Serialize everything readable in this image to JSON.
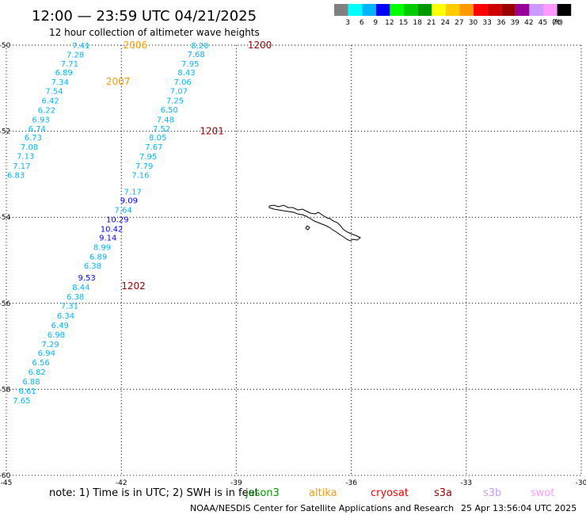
{
  "header": {
    "title": "12:00 — 23:59 UTC 04/21/2025",
    "subtitle": "12 hour collection of altimeter wave heights"
  },
  "colorbar": {
    "unit_label": "(ft)",
    "entries": [
      {
        "label": "",
        "color": "#808080"
      },
      {
        "label": "3",
        "color": "#00ffff"
      },
      {
        "label": "6",
        "color": "#00b4ff"
      },
      {
        "label": "9",
        "color": "#0000ff"
      },
      {
        "label": "12",
        "color": "#00ff00"
      },
      {
        "label": "15",
        "color": "#00cc00"
      },
      {
        "label": "18",
        "color": "#009900"
      },
      {
        "label": "21",
        "color": "#ffff00"
      },
      {
        "label": "24",
        "color": "#ffcc00"
      },
      {
        "label": "27",
        "color": "#ff9900"
      },
      {
        "label": "30",
        "color": "#ff0000"
      },
      {
        "label": "33",
        "color": "#cc0000"
      },
      {
        "label": "36",
        "color": "#990000"
      },
      {
        "label": "39",
        "color": "#990099"
      },
      {
        "label": "42",
        "color": "#cc99ff"
      },
      {
        "label": "45",
        "color": "#ff99ff"
      },
      {
        "label": "70",
        "color": "#000000"
      }
    ]
  },
  "map": {
    "lon_ticks": [
      "-45",
      "-42",
      "-39",
      "-36",
      "-33",
      "-30"
    ],
    "lat_ticks": [
      "-50",
      "-52",
      "-54",
      "-56",
      "-58",
      "-60"
    ],
    "lon_range": [
      -45,
      -30
    ],
    "lat_range": [
      -60,
      -50
    ]
  },
  "time_labels": [
    {
      "text": "2006",
      "lon": -41.95,
      "lat": -50.0,
      "color": "#ff9900"
    },
    {
      "text": "2007",
      "lon": -42.4,
      "lat": -50.85,
      "color": "#ff9900"
    },
    {
      "text": "1200",
      "lon": -38.7,
      "lat": -50.0,
      "color": "#990000"
    },
    {
      "text": "1201",
      "lon": -39.95,
      "lat": -52.0,
      "color": "#990000"
    },
    {
      "text": "1202",
      "lon": -42.0,
      "lat": -55.6,
      "color": "#990000"
    }
  ],
  "tracks": [
    {
      "name": "",
      "points": [
        {
          "v": "7.41",
          "lon": -43.05,
          "lat": -50.0,
          "color": "#00b4ff"
        },
        {
          "v": "7.28",
          "lon": -43.2,
          "lat": -50.21,
          "color": "#00b4ff"
        },
        {
          "v": "7.71",
          "lon": -43.35,
          "lat": -50.42,
          "color": "#00b4ff"
        },
        {
          "v": "6.89",
          "lon": -43.5,
          "lat": -50.63,
          "color": "#00b4ff"
        },
        {
          "v": "7.34",
          "lon": -43.6,
          "lat": -50.85,
          "color": "#00b4ff"
        },
        {
          "v": "7.54",
          "lon": -43.75,
          "lat": -51.06,
          "color": "#00b4ff"
        },
        {
          "v": "6.42",
          "lon": -43.85,
          "lat": -51.28,
          "color": "#00b4ff"
        },
        {
          "v": "6.22",
          "lon": -43.95,
          "lat": -51.5,
          "color": "#00b4ff"
        },
        {
          "v": "6.93",
          "lon": -44.1,
          "lat": -51.72,
          "color": "#00b4ff"
        },
        {
          "v": "6.74",
          "lon": -44.2,
          "lat": -51.93,
          "color": "#00b4ff"
        },
        {
          "v": "6.73",
          "lon": -44.3,
          "lat": -52.14,
          "color": "#00b4ff"
        },
        {
          "v": "7.08",
          "lon": -44.4,
          "lat": -52.36,
          "color": "#00b4ff"
        },
        {
          "v": "7.13",
          "lon": -44.5,
          "lat": -52.57,
          "color": "#00b4ff"
        },
        {
          "v": "7.17",
          "lon": -44.6,
          "lat": -52.8,
          "color": "#00b4ff"
        },
        {
          "v": "6.83",
          "lon": -44.75,
          "lat": -53.01,
          "color": "#00b4ff"
        }
      ]
    },
    {
      "name": "",
      "points": [
        {
          "v": "8.20",
          "lon": -39.95,
          "lat": -50.0,
          "color": "#00b4ff"
        },
        {
          "v": "7.68",
          "lon": -40.05,
          "lat": -50.2,
          "color": "#00b4ff"
        },
        {
          "v": "7.95",
          "lon": -40.2,
          "lat": -50.42,
          "color": "#00b4ff"
        },
        {
          "v": "8.43",
          "lon": -40.3,
          "lat": -50.63,
          "color": "#00b4ff"
        },
        {
          "v": "7.06",
          "lon": -40.4,
          "lat": -50.85,
          "color": "#00b4ff"
        },
        {
          "v": "7.07",
          "lon": -40.5,
          "lat": -51.06,
          "color": "#00b4ff"
        },
        {
          "v": "7.25",
          "lon": -40.6,
          "lat": -51.28,
          "color": "#00b4ff"
        },
        {
          "v": "6.50",
          "lon": -40.75,
          "lat": -51.49,
          "color": "#00b4ff"
        },
        {
          "v": "7.48",
          "lon": -40.85,
          "lat": -51.72,
          "color": "#00b4ff"
        },
        {
          "v": "7.52",
          "lon": -40.95,
          "lat": -51.93,
          "color": "#00b4ff"
        },
        {
          "v": "8.05",
          "lon": -41.05,
          "lat": -52.14,
          "color": "#00b4ff"
        },
        {
          "v": "7.67",
          "lon": -41.15,
          "lat": -52.36,
          "color": "#00b4ff"
        },
        {
          "v": "7.95",
          "lon": -41.3,
          "lat": -52.58,
          "color": "#00b4ff"
        },
        {
          "v": "7.79",
          "lon": -41.4,
          "lat": -52.8,
          "color": "#00b4ff"
        },
        {
          "v": "7.16",
          "lon": -41.5,
          "lat": -53.01,
          "color": "#00b4ff"
        },
        {
          "v": "7.17",
          "lon": -41.7,
          "lat": -53.4,
          "color": "#00b4ff"
        },
        {
          "v": "9.09",
          "lon": -41.8,
          "lat": -53.6,
          "color": "#0000ff"
        },
        {
          "v": "7.64",
          "lon": -41.95,
          "lat": -53.82,
          "color": "#00b4ff"
        },
        {
          "v": "10.29",
          "lon": -42.1,
          "lat": -54.04,
          "color": "#0000ff"
        },
        {
          "v": "10.42",
          "lon": -42.25,
          "lat": -54.26,
          "color": "#0000ff"
        },
        {
          "v": "9.14",
          "lon": -42.35,
          "lat": -54.47,
          "color": "#0000ff"
        },
        {
          "v": "8.99",
          "lon": -42.5,
          "lat": -54.69,
          "color": "#00b4ff"
        },
        {
          "v": "6.89",
          "lon": -42.6,
          "lat": -54.91,
          "color": "#00b4ff"
        },
        {
          "v": "6.38",
          "lon": -42.75,
          "lat": -55.12,
          "color": "#00b4ff"
        },
        {
          "v": "9.53",
          "lon": -42.9,
          "lat": -55.4,
          "color": "#0000ff"
        },
        {
          "v": "8.44",
          "lon": -43.05,
          "lat": -55.62,
          "color": "#00b4ff"
        },
        {
          "v": "6.38",
          "lon": -43.2,
          "lat": -55.84,
          "color": "#00b4ff"
        },
        {
          "v": "7.31",
          "lon": -43.35,
          "lat": -56.05,
          "color": "#00b4ff"
        },
        {
          "v": "6.34",
          "lon": -43.45,
          "lat": -56.28,
          "color": "#00b4ff"
        },
        {
          "v": "6.49",
          "lon": -43.6,
          "lat": -56.5,
          "color": "#00b4ff"
        },
        {
          "v": "6.98",
          "lon": -43.7,
          "lat": -56.72,
          "color": "#00b4ff"
        },
        {
          "v": "7.29",
          "lon": -43.85,
          "lat": -56.94,
          "color": "#00b4ff"
        },
        {
          "v": "6.94",
          "lon": -43.95,
          "lat": -57.15,
          "color": "#00b4ff"
        },
        {
          "v": "6.56",
          "lon": -44.1,
          "lat": -57.37,
          "color": "#00b4ff"
        },
        {
          "v": "6.82",
          "lon": -44.2,
          "lat": -57.59,
          "color": "#00b4ff"
        },
        {
          "v": "6.88",
          "lon": -44.35,
          "lat": -57.81,
          "color": "#00b4ff"
        },
        {
          "v": "6.61",
          "lon": -44.45,
          "lat": -58.03,
          "color": "#00b4ff"
        },
        {
          "v": "7.65",
          "lon": -44.6,
          "lat": -58.25,
          "color": "#00b4ff"
        }
      ]
    }
  ],
  "footer": {
    "note": "note: 1) Time is in UTC; 2) SWH is in feet",
    "satellites": [
      {
        "name": "jason3",
        "color": "#009900"
      },
      {
        "name": "altika",
        "color": "#ff9900"
      },
      {
        "name": "cryosat",
        "color": "#ff0000"
      },
      {
        "name": "s3a",
        "color": "#990000"
      },
      {
        "name": "s3b",
        "color": "#cc99ff"
      },
      {
        "name": "swot",
        "color": "#ff99ff"
      }
    ],
    "credit": "NOAA/NESDIS Center for Satellite Applications and Research",
    "timestamp": "25 Apr 13:56:04 UTC 2025"
  }
}
